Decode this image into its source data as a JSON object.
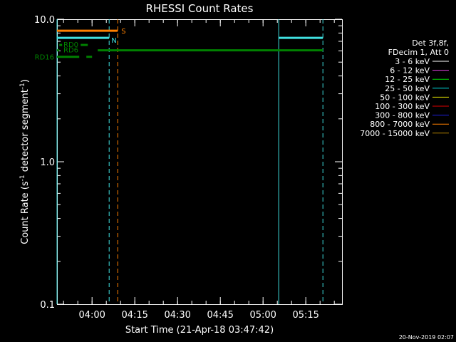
{
  "chart_data": {
    "type": "line",
    "title": "RHESSI Count Rates",
    "xlabel": "Start Time (21-Apr-18 03:47:42)",
    "ylabel_parts": [
      "Count Rate (s",
      "-1",
      " detector segment",
      "-1",
      ")"
    ],
    "y_scale": "log",
    "ylim": [
      0.1,
      10.0
    ],
    "y_ticks": [
      {
        "value": 10.0,
        "label": "10.0"
      },
      {
        "value": 1.0,
        "label": "1.0"
      },
      {
        "value": 0.1,
        "label": "0.1"
      }
    ],
    "x_time_range": [
      "03:47:42",
      "05:27:42"
    ],
    "x_ticks": [
      {
        "time": "04:00",
        "label": "04:00"
      },
      {
        "time": "04:15",
        "label": "04:15"
      },
      {
        "time": "04:30",
        "label": "04:30"
      },
      {
        "time": "04:45",
        "label": "04:45"
      },
      {
        "time": "05:00",
        "label": "05:00"
      },
      {
        "time": "05:15",
        "label": "05:15"
      }
    ],
    "minor_tick_minutes": 5,
    "legend": {
      "position": "right",
      "header": [
        "Det 3f,8f,",
        "FDecim 1, Att 0"
      ],
      "entries": [
        {
          "label": "3 - 6 keV",
          "color": "#ffffff"
        },
        {
          "label": "6 - 12 keV",
          "color": "#e040e0"
        },
        {
          "label": "12 - 25 keV",
          "color": "#00e000"
        },
        {
          "label": "25 - 50 keV",
          "color": "#00e0e0"
        },
        {
          "label": "50 - 100 keV",
          "color": "#e0e000"
        },
        {
          "label": "100 - 300 keV",
          "color": "#e00000"
        },
        {
          "label": "300 - 800 keV",
          "color": "#2020e0"
        },
        {
          "label": "800 - 7000 keV",
          "color": "#ff8000"
        },
        {
          "label": "7000 - 15000 keV",
          "color": "#b08000"
        }
      ]
    },
    "flag_bars": [
      {
        "name": "S",
        "label": "S",
        "color": "#ff8000",
        "y": 8.3,
        "segments": [
          [
            "03:47:42",
            "04:09:00"
          ]
        ]
      },
      {
        "name": "N",
        "label": "N",
        "color": "#40e0e0",
        "y": 7.4,
        "segments": [
          [
            "03:47:42",
            "04:06:00"
          ],
          [
            "05:05:30",
            "05:21:00"
          ]
        ]
      },
      {
        "name": "RD0",
        "label": "RD0",
        "color": "#008000",
        "y": 6.6,
        "segments": [
          [
            "03:48:30",
            "03:49:30"
          ],
          [
            "03:56:00",
            "03:58:30"
          ]
        ]
      },
      {
        "name": "RD6",
        "label": "RD6",
        "color": "#008000",
        "y": 6.05,
        "segments": [
          [
            "03:47:42",
            "03:48:30"
          ],
          [
            "04:02:00",
            "05:21:00"
          ]
        ]
      },
      {
        "name": "RD16",
        "label": "RD16",
        "color": "#008000",
        "y": 5.45,
        "segments": [
          [
            "03:47:42",
            "03:55:30"
          ],
          [
            "03:58:00",
            "04:00:00"
          ]
        ]
      }
    ],
    "vertical_lines": [
      {
        "time": "03:47:42",
        "color": "#40e0e0",
        "style": "solid"
      },
      {
        "time": "04:06:00",
        "color": "#40e0e0",
        "style": "dashed"
      },
      {
        "time": "04:09:00",
        "color": "#ff8000",
        "style": "dashed"
      },
      {
        "time": "05:05:30",
        "color": "#40e0e0",
        "style": "solid"
      },
      {
        "time": "05:21:00",
        "color": "#40e0e0",
        "style": "dashed"
      }
    ],
    "series": []
  },
  "timestamp": "20-Nov-2019 02:07"
}
